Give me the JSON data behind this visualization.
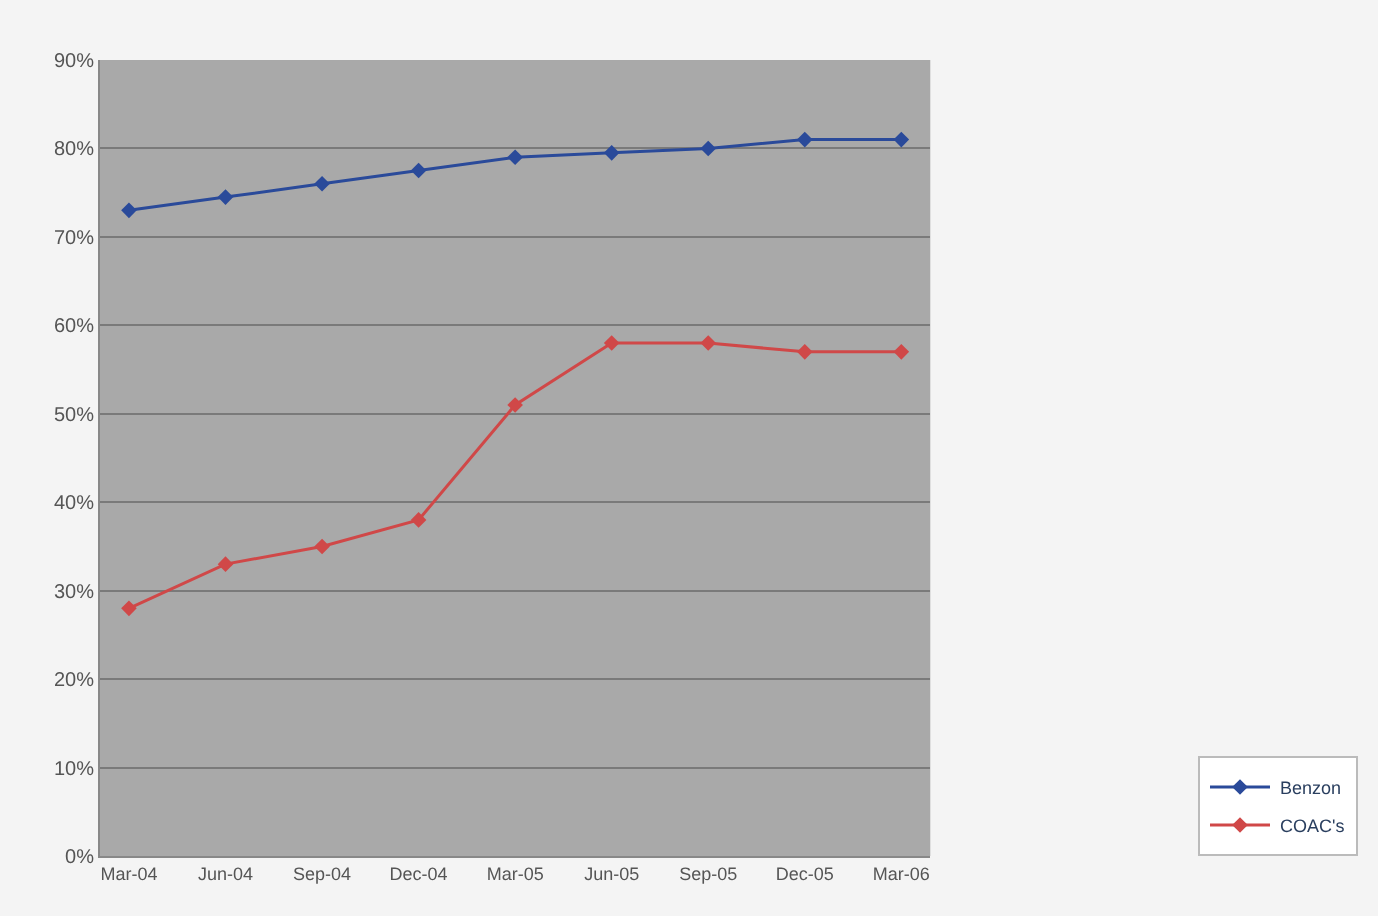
{
  "chart_data": {
    "type": "line",
    "categories": [
      "Mar-04",
      "Jun-04",
      "Sep-04",
      "Dec-04",
      "Mar-05",
      "Jun-05",
      "Sep-05",
      "Dec-05",
      "Mar-06"
    ],
    "series": [
      {
        "name": "Benzon",
        "color": "#2a4a9a",
        "values": [
          73,
          74.5,
          76,
          77.5,
          79,
          79.5,
          80,
          81,
          81
        ]
      },
      {
        "name": "COAC's",
        "color": "#d04848",
        "values": [
          28,
          33,
          35,
          38,
          51,
          58,
          58,
          57,
          57
        ]
      }
    ],
    "ylim": [
      0,
      90
    ],
    "yticks": [
      {
        "value": 0,
        "label": "0%"
      },
      {
        "value": 10,
        "label": "10%"
      },
      {
        "value": 20,
        "label": "20%"
      },
      {
        "value": 30,
        "label": "30%"
      },
      {
        "value": 40,
        "label": "40%"
      },
      {
        "value": 50,
        "label": "50%"
      },
      {
        "value": 60,
        "label": "60%"
      },
      {
        "value": 70,
        "label": "70%"
      },
      {
        "value": 80,
        "label": "80%"
      },
      {
        "value": 90,
        "label": "90%"
      }
    ],
    "grid": "y",
    "legend": "bottom right",
    "marker": "diamond",
    "line_style": "solid"
  }
}
